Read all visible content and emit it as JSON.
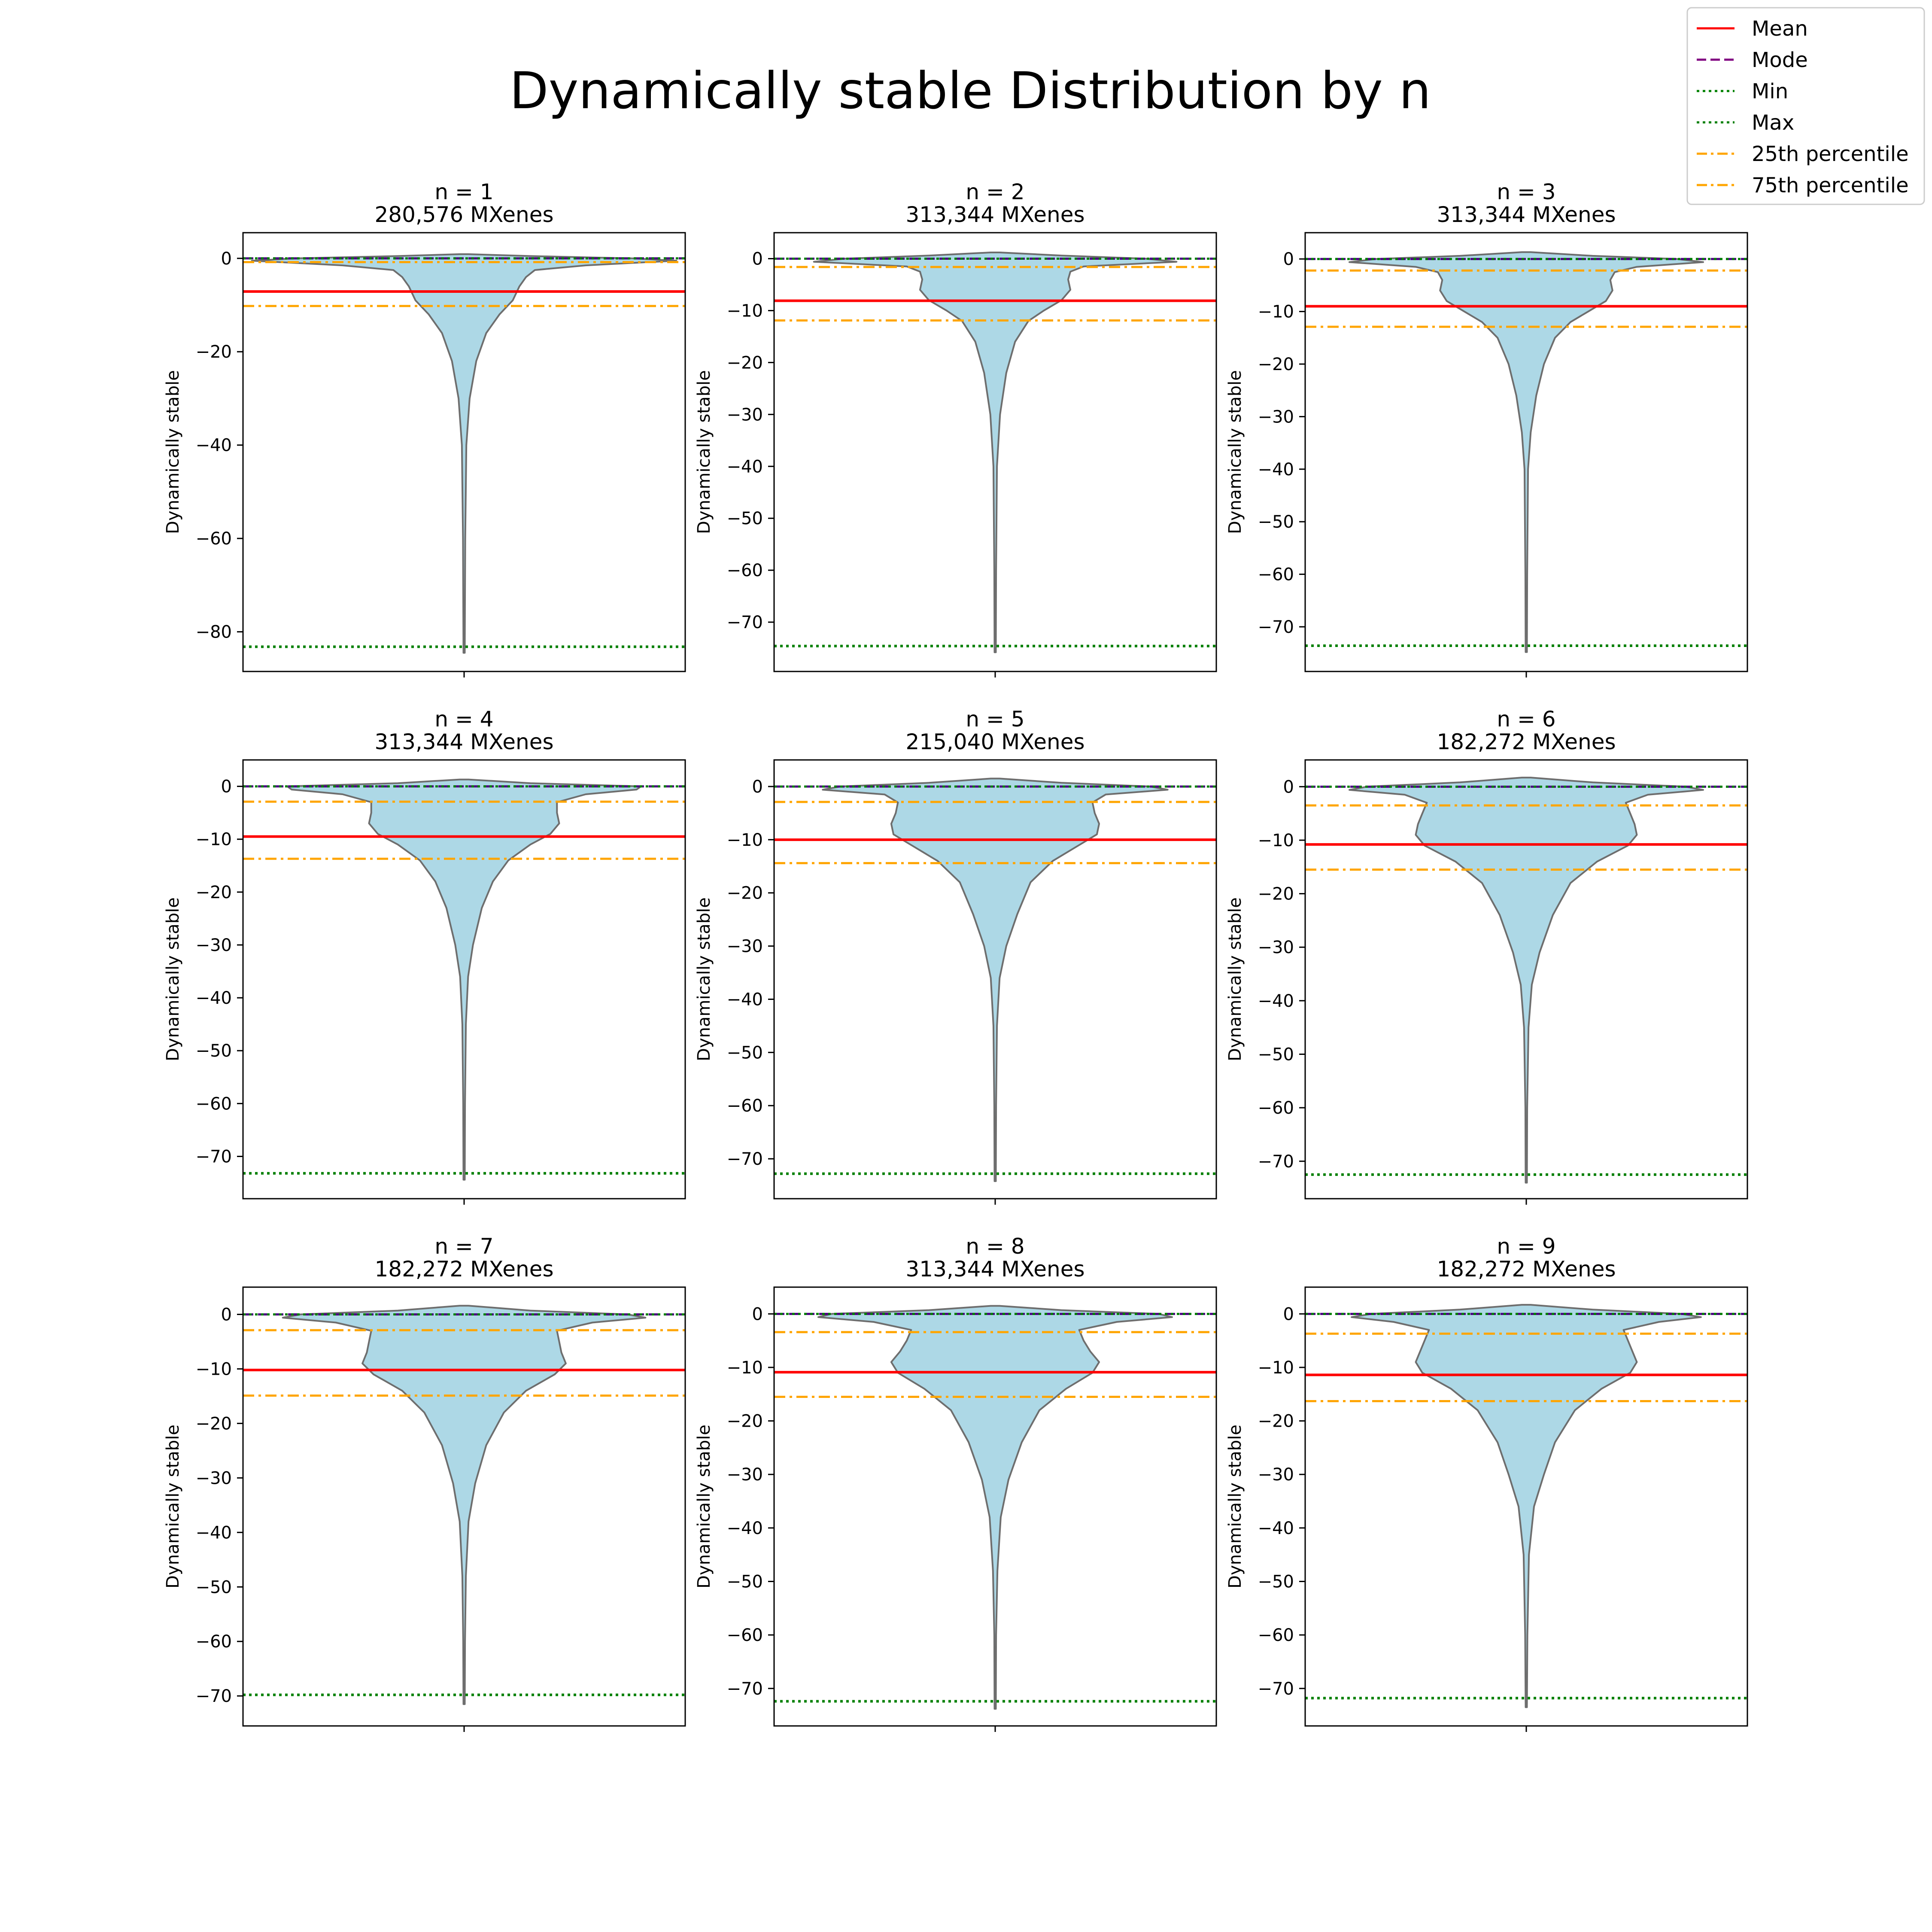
{
  "title": "Dynamically stable Distribution by n",
  "legend": {
    "placement": "top-right",
    "entries": [
      {
        "label": "Mean",
        "color": "#ff0000",
        "style": "solid"
      },
      {
        "label": "Mode",
        "color": "#800080",
        "style": "dashed"
      },
      {
        "label": "Min",
        "color": "#008000",
        "style": "dotted"
      },
      {
        "label": "Max",
        "color": "#008000",
        "style": "dotted"
      },
      {
        "label": "25th percentile",
        "color": "#ffa500",
        "style": "dashdot"
      },
      {
        "label": "75th percentile",
        "color": "#ffa500",
        "style": "dashdot"
      }
    ]
  },
  "colors": {
    "violin_fill": "#add8e6",
    "violin_edge": "#6e6e6e",
    "mode_line": "#4b0082"
  },
  "chart_data": [
    {
      "type": "violin",
      "title": "n = 1",
      "subtitle": "280,576 MXenes",
      "ylabel": "Dynamically stable",
      "ylim": [
        -88.5,
        5.5
      ],
      "yticks": [
        0,
        -20,
        -40,
        -60,
        -80
      ],
      "stats": {
        "mean": -7.1,
        "mode": 0,
        "min": -83.2,
        "max": 0,
        "p25": -10.2,
        "p75": -0.8,
        "top": 0.9,
        "bottom": -84.5
      },
      "profile": [
        [
          0.9,
          0.02
        ],
        [
          0.5,
          0.3
        ],
        [
          0,
          0.76
        ],
        [
          -0.5,
          0.96
        ],
        [
          -1.5,
          0.55
        ],
        [
          -2.5,
          0.32
        ],
        [
          -4,
          0.28
        ],
        [
          -6,
          0.25
        ],
        [
          -9,
          0.22
        ],
        [
          -12,
          0.16
        ],
        [
          -16,
          0.1
        ],
        [
          -22,
          0.055
        ],
        [
          -30,
          0.025
        ],
        [
          -40,
          0.01
        ],
        [
          -60,
          0.005
        ],
        [
          -84.5,
          0.003
        ]
      ]
    },
    {
      "type": "violin",
      "title": "n = 2",
      "subtitle": "313,344 MXenes",
      "ylabel": "Dynamically stable",
      "ylim": [
        -79.5,
        5.0
      ],
      "yticks": [
        0,
        -10,
        -20,
        -30,
        -40,
        -50,
        -60,
        -70
      ],
      "stats": {
        "mean": -8.1,
        "mode": 0,
        "min": -74.6,
        "max": 0,
        "p25": -11.9,
        "p75": -1.6,
        "top": 1.2,
        "bottom": -75.8
      },
      "profile": [
        [
          1.2,
          0.02
        ],
        [
          0.6,
          0.3
        ],
        [
          0,
          0.68
        ],
        [
          -0.6,
          0.82
        ],
        [
          -1.5,
          0.4
        ],
        [
          -2.5,
          0.34
        ],
        [
          -4,
          0.33
        ],
        [
          -6,
          0.34
        ],
        [
          -8,
          0.3
        ],
        [
          -10,
          0.22
        ],
        [
          -12,
          0.15
        ],
        [
          -16,
          0.09
        ],
        [
          -22,
          0.05
        ],
        [
          -30,
          0.022
        ],
        [
          -40,
          0.008
        ],
        [
          -60,
          0.004
        ],
        [
          -75.8,
          0.003
        ]
      ]
    },
    {
      "type": "violin",
      "title": "n = 3",
      "subtitle": "313,344 MXenes",
      "ylabel": "Dynamically stable",
      "ylim": [
        -78.5,
        5.0
      ],
      "yticks": [
        0,
        -10,
        -20,
        -30,
        -40,
        -50,
        -60,
        -70
      ],
      "stats": {
        "mean": -9.0,
        "mode": 0,
        "min": -73.6,
        "max": 0,
        "p25": -12.9,
        "p75": -2.2,
        "top": 1.3,
        "bottom": -74.8
      },
      "profile": [
        [
          1.3,
          0.02
        ],
        [
          0.6,
          0.3
        ],
        [
          0,
          0.68
        ],
        [
          -0.6,
          0.8
        ],
        [
          -1.5,
          0.5
        ],
        [
          -2.5,
          0.4
        ],
        [
          -4,
          0.38
        ],
        [
          -6,
          0.39
        ],
        [
          -8,
          0.36
        ],
        [
          -10,
          0.28
        ],
        [
          -12,
          0.2
        ],
        [
          -15,
          0.13
        ],
        [
          -20,
          0.08
        ],
        [
          -26,
          0.045
        ],
        [
          -33,
          0.02
        ],
        [
          -40,
          0.008
        ],
        [
          -60,
          0.004
        ],
        [
          -74.8,
          0.003
        ]
      ]
    },
    {
      "type": "violin",
      "title": "n = 4",
      "subtitle": "313,344 MXenes",
      "ylabel": "Dynamically stable",
      "ylim": [
        -78.0,
        5.0
      ],
      "yticks": [
        0,
        -10,
        -20,
        -30,
        -40,
        -50,
        -60,
        -70
      ],
      "stats": {
        "mean": -9.5,
        "mode": 0,
        "min": -73.2,
        "max": 0,
        "p25": -13.7,
        "p75": -2.9,
        "top": 1.3,
        "bottom": -74.4
      },
      "profile": [
        [
          1.3,
          0.02
        ],
        [
          0.6,
          0.3
        ],
        [
          0,
          0.8
        ],
        [
          -0.6,
          0.78
        ],
        [
          -1.5,
          0.55
        ],
        [
          -3,
          0.42
        ],
        [
          -5,
          0.42
        ],
        [
          -7,
          0.43
        ],
        [
          -9,
          0.39
        ],
        [
          -11,
          0.3
        ],
        [
          -14,
          0.2
        ],
        [
          -18,
          0.13
        ],
        [
          -23,
          0.08
        ],
        [
          -30,
          0.04
        ],
        [
          -36,
          0.018
        ],
        [
          -45,
          0.008
        ],
        [
          -60,
          0.004
        ],
        [
          -74.4,
          0.003
        ]
      ]
    },
    {
      "type": "violin",
      "title": "n = 5",
      "subtitle": "215,040 MXenes",
      "ylabel": "Dynamically stable",
      "ylim": [
        -77.5,
        5.0
      ],
      "yticks": [
        0,
        -10,
        -20,
        -30,
        -40,
        -50,
        -60,
        -70
      ],
      "stats": {
        "mean": -10.0,
        "mode": 0,
        "min": -72.8,
        "max": 0,
        "p25": -14.4,
        "p75": -2.9,
        "top": 1.5,
        "bottom": -74.2
      },
      "profile": [
        [
          1.5,
          0.02
        ],
        [
          0.7,
          0.3
        ],
        [
          0,
          0.7
        ],
        [
          -0.6,
          0.78
        ],
        [
          -1.5,
          0.5
        ],
        [
          -3,
          0.44
        ],
        [
          -5,
          0.45
        ],
        [
          -7,
          0.47
        ],
        [
          -9,
          0.46
        ],
        [
          -11,
          0.38
        ],
        [
          -14,
          0.26
        ],
        [
          -18,
          0.16
        ],
        [
          -24,
          0.1
        ],
        [
          -30,
          0.05
        ],
        [
          -36,
          0.02
        ],
        [
          -45,
          0.008
        ],
        [
          -60,
          0.004
        ],
        [
          -74.2,
          0.003
        ]
      ]
    },
    {
      "type": "violin",
      "title": "n = 6",
      "subtitle": "182,272 MXenes",
      "ylabel": "Dynamically stable",
      "ylim": [
        -77.0,
        5.0
      ],
      "yticks": [
        0,
        -10,
        -20,
        -30,
        -40,
        -50,
        -60,
        -70
      ],
      "stats": {
        "mean": -10.8,
        "mode": 0,
        "min": -72.5,
        "max": 0,
        "p25": -15.5,
        "p75": -3.5,
        "top": 1.7,
        "bottom": -74.0
      },
      "profile": [
        [
          1.7,
          0.02
        ],
        [
          0.8,
          0.3
        ],
        [
          0,
          0.72
        ],
        [
          -0.6,
          0.8
        ],
        [
          -1.5,
          0.55
        ],
        [
          -3,
          0.45
        ],
        [
          -5,
          0.47
        ],
        [
          -7,
          0.49
        ],
        [
          -9,
          0.5
        ],
        [
          -11,
          0.46
        ],
        [
          -14,
          0.32
        ],
        [
          -18,
          0.2
        ],
        [
          -24,
          0.12
        ],
        [
          -31,
          0.06
        ],
        [
          -37,
          0.025
        ],
        [
          -45,
          0.01
        ],
        [
          -60,
          0.004
        ],
        [
          -74.0,
          0.003
        ]
      ]
    },
    {
      "type": "violin",
      "title": "n = 7",
      "subtitle": "182,272 MXenes",
      "ylabel": "Dynamically stable",
      "ylim": [
        -75.5,
        5.0
      ],
      "yticks": [
        0,
        -10,
        -20,
        -30,
        -40,
        -50,
        -60,
        -70
      ],
      "stats": {
        "mean": -10.2,
        "mode": 0,
        "min": -69.8,
        "max": 0,
        "p25": -14.9,
        "p75": -2.9,
        "top": 1.6,
        "bottom": -71.5
      },
      "profile": [
        [
          1.6,
          0.02
        ],
        [
          0.7,
          0.3
        ],
        [
          0,
          0.74
        ],
        [
          -0.6,
          0.82
        ],
        [
          -1.5,
          0.58
        ],
        [
          -3,
          0.42
        ],
        [
          -5,
          0.43
        ],
        [
          -7,
          0.44
        ],
        [
          -9,
          0.46
        ],
        [
          -11,
          0.41
        ],
        [
          -14,
          0.28
        ],
        [
          -18,
          0.18
        ],
        [
          -24,
          0.1
        ],
        [
          -31,
          0.05
        ],
        [
          -38,
          0.02
        ],
        [
          -48,
          0.008
        ],
        [
          -60,
          0.004
        ],
        [
          -71.5,
          0.003
        ]
      ]
    },
    {
      "type": "violin",
      "title": "n = 8",
      "subtitle": "313,344 MXenes",
      "ylabel": "Dynamically stable",
      "ylim": [
        -77.0,
        5.0
      ],
      "yticks": [
        0,
        -10,
        -20,
        -30,
        -40,
        -50,
        -60,
        -70
      ],
      "stats": {
        "mean": -10.9,
        "mode": 0,
        "min": -72.4,
        "max": 0,
        "p25": -15.5,
        "p75": -3.4,
        "top": 1.5,
        "bottom": -73.8
      },
      "profile": [
        [
          1.5,
          0.02
        ],
        [
          0.7,
          0.3
        ],
        [
          0,
          0.74
        ],
        [
          -0.6,
          0.8
        ],
        [
          -1.5,
          0.55
        ],
        [
          -3,
          0.38
        ],
        [
          -5,
          0.4
        ],
        [
          -7,
          0.43
        ],
        [
          -9,
          0.47
        ],
        [
          -11,
          0.44
        ],
        [
          -14,
          0.32
        ],
        [
          -18,
          0.2
        ],
        [
          -24,
          0.12
        ],
        [
          -31,
          0.06
        ],
        [
          -38,
          0.025
        ],
        [
          -48,
          0.01
        ],
        [
          -60,
          0.004
        ],
        [
          -73.8,
          0.003
        ]
      ]
    },
    {
      "type": "violin",
      "title": "n = 9",
      "subtitle": "182,272 MXenes",
      "ylabel": "Dynamically stable",
      "ylim": [
        -77.0,
        5.0
      ],
      "yticks": [
        0,
        -10,
        -20,
        -30,
        -40,
        -50,
        -60,
        -70
      ],
      "stats": {
        "mean": -11.4,
        "mode": 0,
        "min": -71.8,
        "max": 0,
        "p25": -16.3,
        "p75": -3.7,
        "top": 1.7,
        "bottom": -73.5
      },
      "profile": [
        [
          1.7,
          0.02
        ],
        [
          0.8,
          0.3
        ],
        [
          0,
          0.7
        ],
        [
          -0.6,
          0.79
        ],
        [
          -1.5,
          0.6
        ],
        [
          -3,
          0.44
        ],
        [
          -5,
          0.46
        ],
        [
          -7,
          0.48
        ],
        [
          -9,
          0.5
        ],
        [
          -11,
          0.47
        ],
        [
          -14,
          0.34
        ],
        [
          -18,
          0.22
        ],
        [
          -24,
          0.13
        ],
        [
          -30,
          0.08
        ],
        [
          -36,
          0.035
        ],
        [
          -45,
          0.012
        ],
        [
          -60,
          0.005
        ],
        [
          -73.5,
          0.003
        ]
      ]
    }
  ]
}
